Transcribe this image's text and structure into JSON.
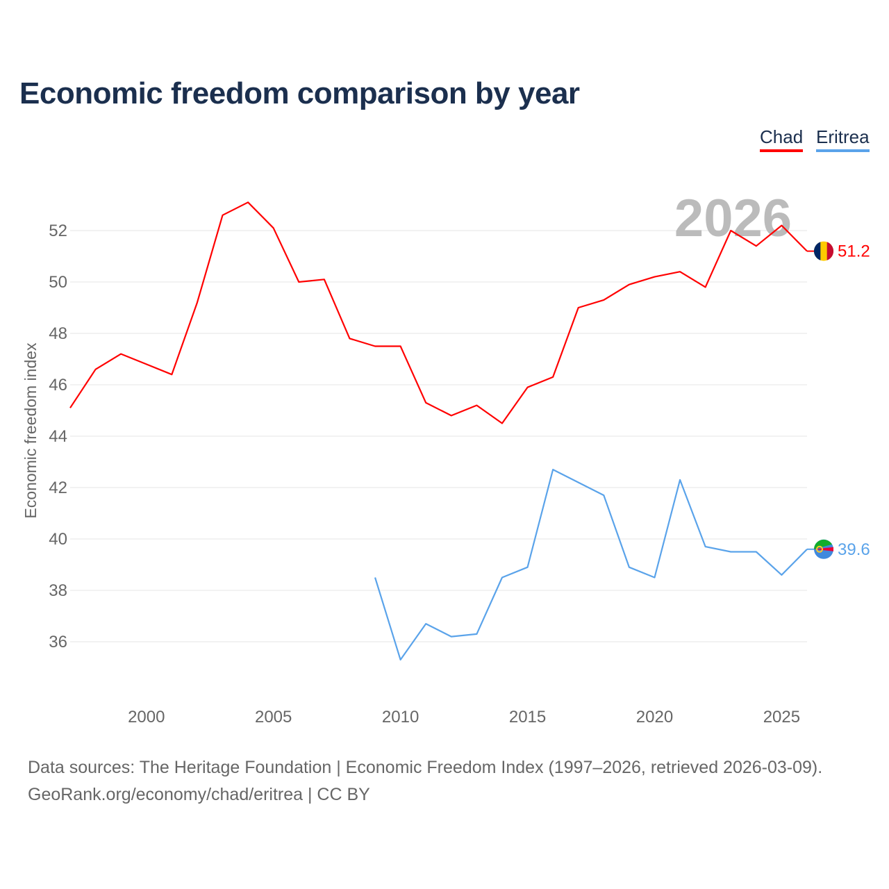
{
  "title": "Economic freedom comparison by year",
  "legend": [
    "Chad",
    "Eritrea"
  ],
  "footer": {
    "line1": "Data sources: The Heritage Foundation | Economic Freedom Index (1997–2026, retrieved 2026-03-09).",
    "line2": "GeoRank.org/economy/chad/eritrea | CC BY"
  },
  "chart_data": {
    "type": "line",
    "title": "Economic freedom comparison by year",
    "xlabel": "",
    "ylabel": "Economic freedom index",
    "xlim": [
      1997,
      2026
    ],
    "ylim": [
      34,
      54.2
    ],
    "xticks": [
      2000,
      2005,
      2010,
      2015,
      2020,
      2025
    ],
    "yticks": [
      36,
      38,
      40,
      42,
      44,
      46,
      48,
      50,
      52
    ],
    "grid": true,
    "legend_position": "top-right",
    "year_watermark": "2026",
    "series": [
      {
        "name": "Chad",
        "color": "#ff0000",
        "end_label": "51.2",
        "x": [
          1997,
          1998,
          1999,
          2000,
          2001,
          2002,
          2003,
          2004,
          2005,
          2006,
          2007,
          2008,
          2009,
          2010,
          2011,
          2012,
          2013,
          2014,
          2015,
          2016,
          2017,
          2018,
          2019,
          2020,
          2021,
          2022,
          2023,
          2024,
          2025,
          2026
        ],
        "values": [
          45.1,
          46.6,
          47.2,
          46.8,
          46.4,
          49.2,
          52.6,
          53.1,
          52.1,
          50.0,
          50.1,
          47.8,
          47.5,
          47.5,
          45.3,
          44.8,
          45.2,
          44.5,
          45.9,
          46.3,
          49.0,
          49.3,
          49.9,
          50.2,
          50.4,
          49.8,
          52.0,
          51.4,
          52.2,
          51.2
        ]
      },
      {
        "name": "Eritrea",
        "color": "#5aa3ea",
        "end_label": "39.6",
        "x": [
          2009,
          2010,
          2011,
          2012,
          2013,
          2014,
          2015,
          2016,
          2017,
          2018,
          2019,
          2020,
          2021,
          2022,
          2023,
          2024,
          2025,
          2026
        ],
        "values": [
          38.5,
          35.3,
          36.7,
          36.2,
          36.3,
          38.5,
          38.9,
          42.7,
          42.2,
          41.7,
          38.9,
          38.5,
          42.3,
          39.7,
          39.5,
          39.5,
          38.6,
          39.6
        ]
      }
    ]
  }
}
